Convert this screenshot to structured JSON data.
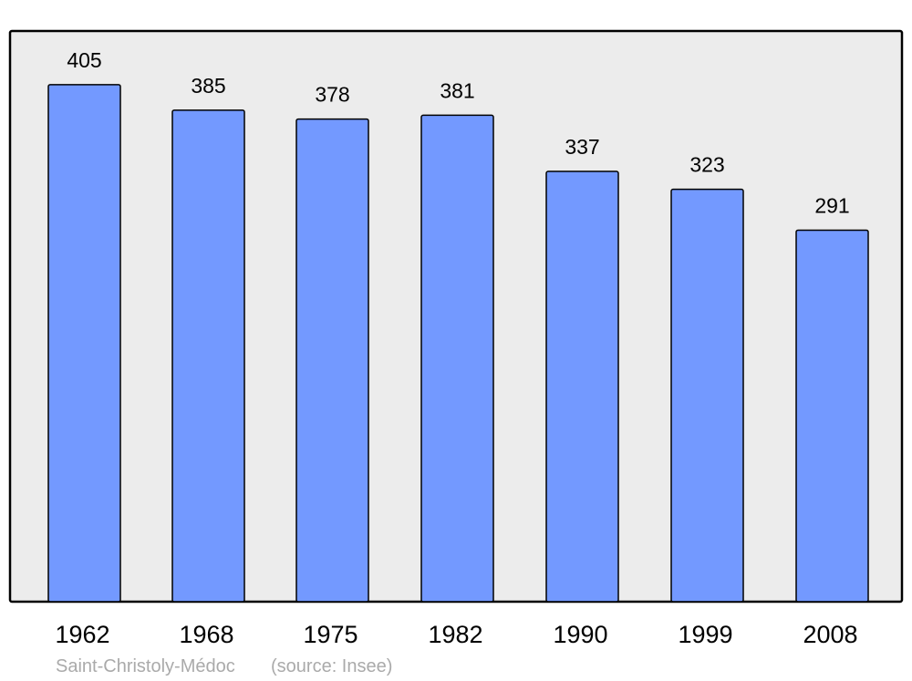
{
  "chart_data": {
    "type": "bar",
    "categories": [
      "1962",
      "1968",
      "1975",
      "1982",
      "1990",
      "1999",
      "2008"
    ],
    "values": [
      405,
      385,
      378,
      381,
      337,
      323,
      291
    ],
    "title": "",
    "xlabel": "",
    "ylabel": "",
    "ylim": [
      0,
      447
    ],
    "grid": false,
    "colors": {
      "bar": "#7399ff",
      "plot_background": "#ececec",
      "outline": "#000000",
      "footer_text": "#aaaaaa"
    }
  },
  "footer": {
    "place": "Saint-Christoly-Médoc",
    "source": "(source: Insee)"
  }
}
